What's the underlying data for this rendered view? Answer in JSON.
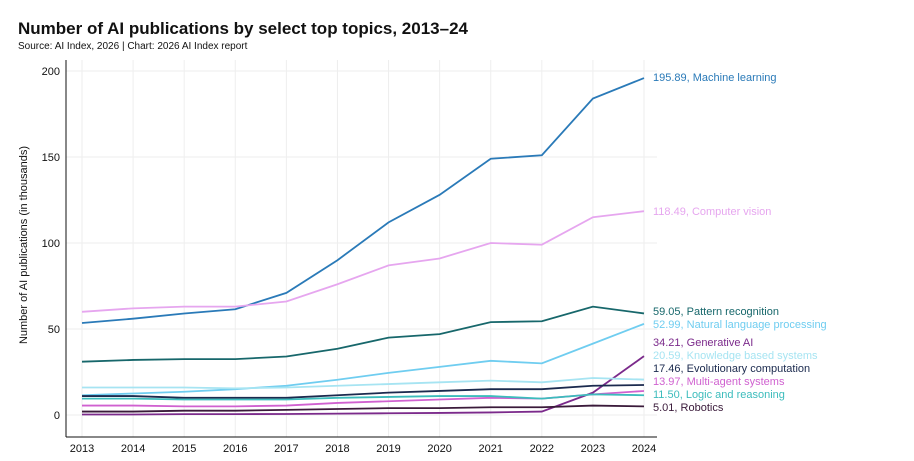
{
  "chart_data": {
    "type": "line",
    "title": "Number of AI publications by select top topics, 2013–24",
    "subtitle": "Source: AI Index, 2026 | Chart: 2026 AI Index report",
    "xlabel": "",
    "ylabel": "Number of AI publications (in thousands)",
    "ylim": [
      0,
      200
    ],
    "yticks": [
      "0",
      "50",
      "100",
      "150",
      "200"
    ],
    "x": [
      "2013",
      "2014",
      "2015",
      "2016",
      "2017",
      "2018",
      "2019",
      "2020",
      "2021",
      "2022",
      "2023",
      "2024"
    ],
    "grid": true,
    "series": [
      {
        "name": "Machine learning",
        "label": "195.89, Machine learning",
        "color": "#2a7ab8",
        "values": [
          53.5,
          56,
          59,
          61.5,
          71,
          90,
          112,
          128,
          149,
          151,
          184,
          195.89
        ]
      },
      {
        "name": "Computer vision",
        "label": "118.49, Computer vision",
        "color": "#e6a6ef",
        "values": [
          60,
          62,
          63,
          63,
          66,
          76,
          87,
          91,
          100,
          99,
          115,
          118.49
        ]
      },
      {
        "name": "Pattern recognition",
        "label": "59.05, Pattern recognition",
        "color": "#17676b",
        "values": [
          31,
          32,
          32.5,
          32.5,
          34,
          38.5,
          45,
          47,
          54,
          54.5,
          63,
          59.05
        ]
      },
      {
        "name": "Natural language processing",
        "label": "52.99, Natural language processing",
        "color": "#6fcdf0",
        "values": [
          11.5,
          12.5,
          13.5,
          15,
          17,
          20.5,
          24.5,
          28,
          31.5,
          30,
          41.5,
          52.99
        ]
      },
      {
        "name": "Generative AI",
        "label": "34.21, Generative AI",
        "color": "#7b2a8b",
        "values": [
          0.3,
          0.3,
          0.5,
          0.5,
          0.6,
          0.8,
          1,
          1.2,
          1.5,
          2,
          13,
          34.21
        ]
      },
      {
        "name": "Knowledge based systems",
        "label": "20.59, Knowledge based systems",
        "color": "#a6e4f2",
        "values": [
          16,
          16,
          16,
          15.5,
          16,
          17,
          18,
          19,
          20,
          19,
          21.5,
          20.59
        ]
      },
      {
        "name": "Evolutionary computation",
        "label": "17.46, Evolutionary computation",
        "color": "#1b2a4e",
        "values": [
          11,
          11,
          10,
          10,
          10,
          11.5,
          13,
          14,
          15,
          15,
          17,
          17.46
        ]
      },
      {
        "name": "Multi-agent systems",
        "label": "13.97, Multi-agent systems",
        "color": "#d061d0",
        "values": [
          5.5,
          5.5,
          5,
          5,
          5.5,
          7,
          8,
          9,
          10,
          9.5,
          12,
          13.97
        ]
      },
      {
        "name": "Logic and reasoning",
        "label": "11.50, Logic and reasoning",
        "color": "#3cbcbc",
        "values": [
          9.5,
          9.5,
          9,
          9,
          9,
          10,
          10.5,
          11,
          11,
          9.5,
          12,
          11.5
        ]
      },
      {
        "name": "Robotics",
        "label": "5.01, Robotics",
        "color": "#3a1a3a",
        "values": [
          2,
          2,
          2.5,
          2.5,
          3,
          3.5,
          4,
          4,
          4.5,
          4.5,
          5.5,
          5.01
        ]
      }
    ]
  }
}
